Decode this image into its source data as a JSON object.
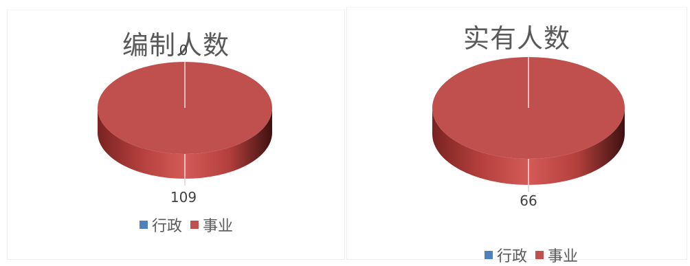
{
  "colors": {
    "xingzheng": "#4f81bd",
    "shiye": "#c0504d"
  },
  "chart_data": [
    {
      "type": "pie",
      "title": "编制人数",
      "categories": [
        "行政",
        "事业"
      ],
      "values": [
        0,
        109
      ],
      "data_labels": [
        "0",
        "109"
      ],
      "legend": [
        "行政",
        "事业"
      ],
      "legend_position": "bottom"
    },
    {
      "type": "pie",
      "title": "实有人数",
      "categories": [
        "行政",
        "事业"
      ],
      "values": [
        0,
        66
      ],
      "data_labels": [
        "66"
      ],
      "legend": [
        "行政",
        "事业"
      ],
      "legend_position": "bottom"
    }
  ]
}
